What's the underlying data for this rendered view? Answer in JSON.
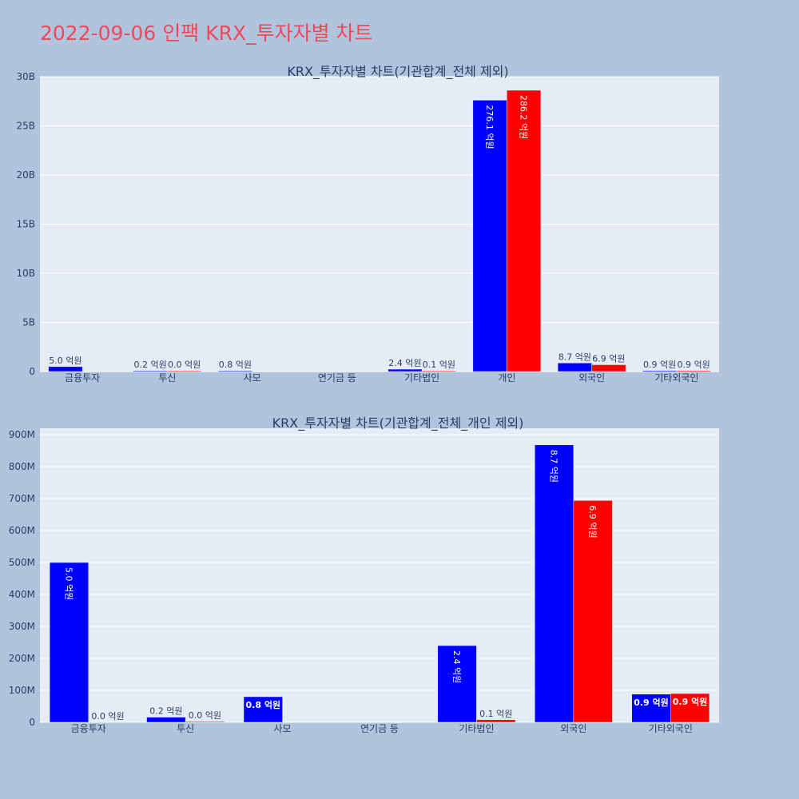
{
  "page": {
    "title": "2022-09-06 인팩 KRX_투자자별 차트"
  },
  "colors": {
    "buy": "#0000ff",
    "sell": "#ff0000",
    "background": "#b0c4de",
    "plot": "#e5ecf6",
    "title": "#ef4959"
  },
  "chart_data": [
    {
      "type": "bar",
      "title": "KRX_투자자별 차트(기관합계_전체 제외)",
      "categories": [
        "금융투자",
        "투신",
        "사모",
        "연기금 등",
        "기타법인",
        "개인",
        "외국인",
        "기타외국인"
      ],
      "series": [
        {
          "values": [
            500000000,
            20000000,
            80000000,
            0,
            240000000,
            27610000000,
            870000000,
            90000000
          ],
          "labels": [
            "5.0 억원",
            "0.2 억원",
            "0.8 억원",
            "",
            "2.4 억원",
            "276.1 억원",
            "8.7 억원",
            "0.9 억원"
          ]
        },
        {
          "values": [
            0,
            2000000,
            0,
            0,
            8000000,
            28620000000,
            690000000,
            90000000
          ],
          "labels": [
            "",
            "0.0 억원",
            "",
            "",
            "0.1 억원",
            "286.2 억원",
            "6.9 억원",
            "0.9 억원"
          ]
        }
      ],
      "yticks": [
        0,
        5000000000,
        10000000000,
        15000000000,
        20000000000,
        25000000000,
        30000000000
      ],
      "ytick_labels": [
        "0",
        "5B",
        "10B",
        "15B",
        "20B",
        "25B",
        "30B"
      ],
      "ylim": [
        0,
        30000000000
      ],
      "grid": true,
      "xlabel": "",
      "ylabel": ""
    },
    {
      "type": "bar",
      "title": "KRX_투자자별 차트(기관합계_전체_개인 제외)",
      "categories": [
        "금융투자",
        "투신",
        "사모",
        "연기금 등",
        "기타법인",
        "외국인",
        "기타외국인"
      ],
      "series": [
        {
          "values": [
            500000000,
            16000000,
            80000000,
            0,
            240000000,
            868000000,
            88000000
          ],
          "labels": [
            "5.0 억원",
            "0.2 억원",
            "0.8 억원",
            "",
            "2.4 억원",
            "8.7 억원",
            "0.9 억원"
          ]
        },
        {
          "values": [
            0,
            2000000,
            0,
            0,
            8000000,
            694000000,
            90000000
          ],
          "labels": [
            "0.0 억원",
            "0.0 억원",
            "",
            "",
            "0.1 억원",
            "6.9 억원",
            "0.9 억원"
          ]
        }
      ],
      "yticks": [
        0,
        100000000,
        200000000,
        300000000,
        400000000,
        500000000,
        600000000,
        700000000,
        800000000,
        900000000
      ],
      "ytick_labels": [
        "0",
        "100M",
        "200M",
        "300M",
        "400M",
        "500M",
        "600M",
        "700M",
        "800M",
        "900M"
      ],
      "ylim": [
        0,
        920000000
      ],
      "grid": true,
      "xlabel": "",
      "ylabel": ""
    }
  ]
}
